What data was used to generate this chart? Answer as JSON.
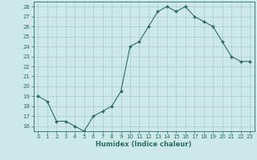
{
  "x": [
    0,
    1,
    2,
    3,
    4,
    5,
    6,
    7,
    8,
    9,
    10,
    11,
    12,
    13,
    14,
    15,
    16,
    17,
    18,
    19,
    20,
    21,
    22,
    23
  ],
  "y": [
    19,
    18.5,
    16.5,
    16.5,
    16,
    15.5,
    17,
    17.5,
    18,
    19.5,
    24,
    24.5,
    26,
    27.5,
    28,
    27.5,
    28,
    27,
    26.5,
    26,
    24.5,
    23,
    22.5,
    22.5
  ],
  "xlabel": "Humidex (Indice chaleur)",
  "xlim": [
    -0.5,
    23.5
  ],
  "ylim": [
    15.5,
    28.5
  ],
  "yticks": [
    16,
    17,
    18,
    19,
    20,
    21,
    22,
    23,
    24,
    25,
    26,
    27,
    28
  ],
  "xticks": [
    0,
    1,
    2,
    3,
    4,
    5,
    6,
    7,
    8,
    9,
    10,
    11,
    12,
    13,
    14,
    15,
    16,
    17,
    18,
    19,
    20,
    21,
    22,
    23
  ],
  "line_color": "#2d6e5e",
  "bg_color": "#cce8e8",
  "grid_color": "#aacccc",
  "font_color": "#2d6e5e",
  "tick_fontsize": 5.0,
  "xlabel_fontsize": 6.0,
  "linewidth": 0.8,
  "markersize": 2.0
}
